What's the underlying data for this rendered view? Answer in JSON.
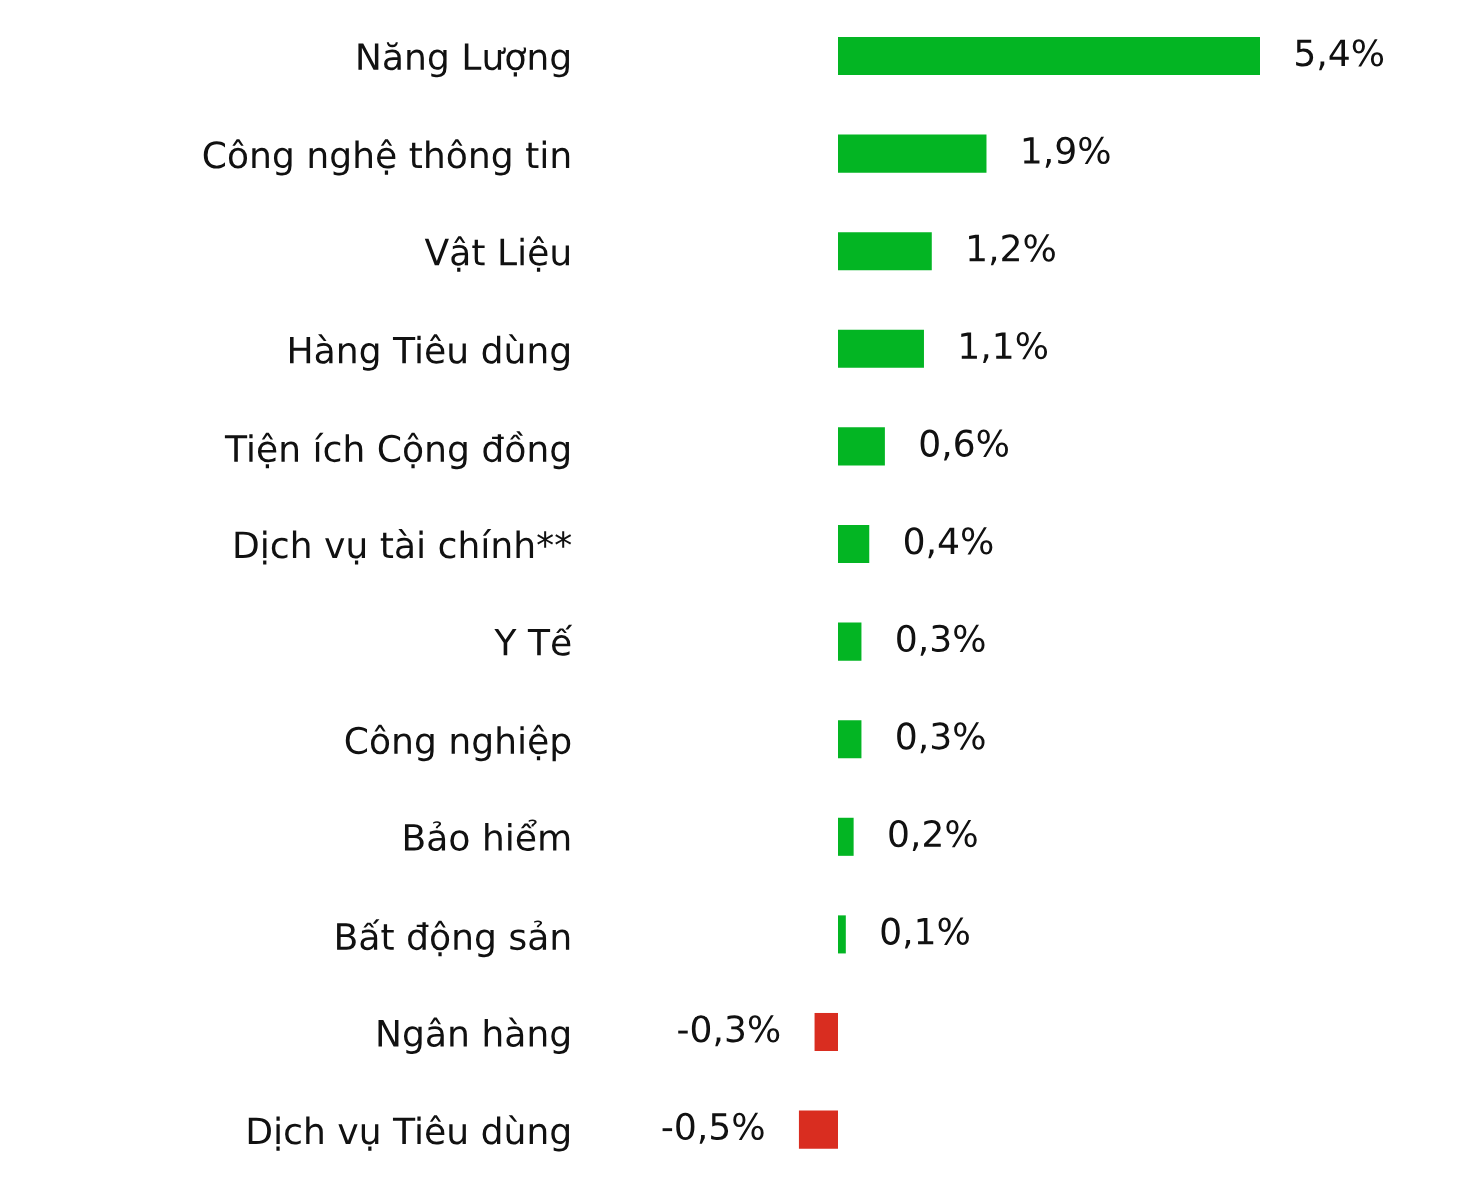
{
  "chart_data": {
    "type": "bar",
    "orientation": "horizontal",
    "categories": [
      "Năng Lượng",
      "Công nghệ thông tin",
      "Vật Liệu",
      "Hàng Tiêu dùng",
      "Tiện ích Cộng đồng",
      "Dịch vụ tài chính**",
      "Y Tế",
      "Công nghiệp",
      "Bảo hiểm",
      "Bất động sản",
      "Ngân hàng",
      "Dịch vụ Tiêu dùng"
    ],
    "values": [
      5.4,
      1.9,
      1.2,
      1.1,
      0.6,
      0.4,
      0.3,
      0.3,
      0.2,
      0.1,
      -0.3,
      -0.5
    ],
    "colors": [
      "#03b523",
      "#03b523",
      "#03b523",
      "#03b523",
      "#03b523",
      "#03b523",
      "#03b523",
      "#03b523",
      "#03b523",
      "#03b523",
      "#d92d20",
      "#d92d20"
    ],
    "value_labels": [
      "5,4%",
      "1,9%",
      "1,2%",
      "1,1%",
      "0,6%",
      "0,4%",
      "0,3%",
      "0,3%",
      "0,2%",
      "0,1%",
      "-0,3%",
      "-0,5%"
    ]
  }
}
